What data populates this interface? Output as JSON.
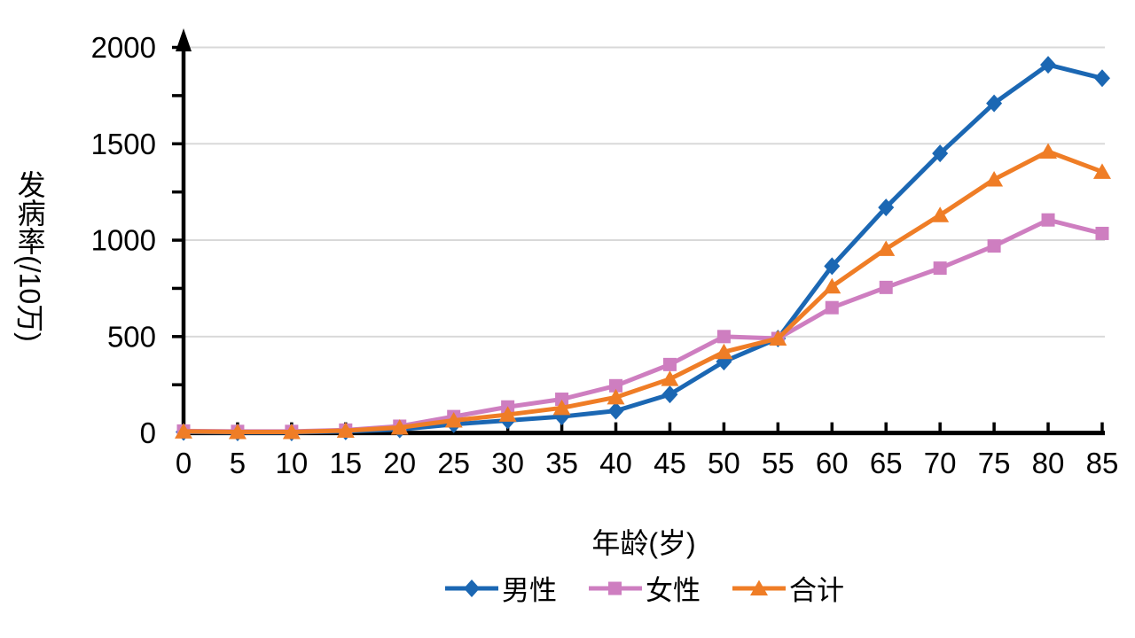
{
  "chart_data": {
    "type": "line",
    "title": "",
    "xlabel": "年龄(岁)",
    "ylabel": "发病率(/10万)",
    "ylabel_main": "发病率",
    "ylabel_unit": "(/10万)",
    "x_tick_labels": [
      "0",
      "5",
      "10",
      "15",
      "20",
      "25",
      "30",
      "35",
      "40",
      "45",
      "50",
      "55",
      "60",
      "65",
      "70",
      "75",
      "80",
      "85"
    ],
    "x_values": [
      0,
      5,
      10,
      15,
      20,
      25,
      30,
      35,
      40,
      45,
      50,
      55,
      60,
      65,
      70,
      75,
      80,
      85
    ],
    "ylim": [
      0,
      2000
    ],
    "y_ticks_labeled": [
      0,
      500,
      1000,
      1500,
      2000
    ],
    "y_tick_minor_interval": 250,
    "grid": "horizontal-major",
    "legend_position": "bottom",
    "series": [
      {
        "id": "male",
        "name": "男性",
        "marker": "diamond",
        "color": "#1B67B3",
        "values": [
          5,
          3,
          3,
          8,
          18,
          45,
          65,
          85,
          115,
          200,
          370,
          490,
          865,
          1170,
          1450,
          1710,
          1910,
          1840
        ]
      },
      {
        "id": "female",
        "name": "女性",
        "marker": "square",
        "color": "#CE7EC0",
        "values": [
          10,
          8,
          8,
          15,
          35,
          85,
          135,
          175,
          245,
          355,
          500,
          490,
          650,
          755,
          855,
          970,
          1105,
          1035
        ]
      },
      {
        "id": "total",
        "name": "合计",
        "marker": "triangle",
        "color": "#EF7D26",
        "values": [
          8,
          5,
          5,
          12,
          28,
          65,
          95,
          130,
          185,
          280,
          420,
          490,
          760,
          955,
          1130,
          1315,
          1460,
          1355
        ]
      }
    ]
  },
  "colors": {
    "background": "#FFFFFF",
    "axis": "#000000",
    "grid": "#D9D9D9",
    "text": "#000000",
    "series_male": "#1B67B3",
    "series_female": "#CE7EC0",
    "series_total": "#EF7D26"
  }
}
